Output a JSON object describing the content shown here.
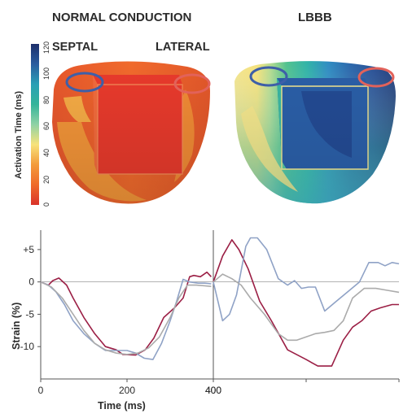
{
  "panels": {
    "normal_title": "NORMAL CONDUCTION",
    "lbbb_title": "LBBB",
    "septal_label": "SEPTAL",
    "lateral_label": "LATERAL"
  },
  "colorbar": {
    "title": "Activation Time (ms)",
    "ticks": [
      "0",
      "20",
      "40",
      "60",
      "80",
      "100",
      "120"
    ],
    "colors": [
      "#d9322a",
      "#ef6a2a",
      "#f39b3a",
      "#f7e27a",
      "#8fd2a5",
      "#33b49a",
      "#2a9fb5",
      "#2a5c9e",
      "#1d2f6b"
    ]
  },
  "markers": {
    "septal_color": "#3e5fa8",
    "lateral_color": "#e2625a"
  },
  "chart_data": [
    {
      "type": "line",
      "panel": "normal",
      "xlabel": "Time (ms)",
      "ylabel": "Strain (%)",
      "xlim": [
        0,
        400
      ],
      "ylim": [
        -15,
        8
      ],
      "x_ticks": [
        "0",
        "200",
        "400"
      ],
      "y_ticks": [
        "+5",
        "0",
        "-5",
        "-10"
      ],
      "series": [
        {
          "color": "#9b1f45",
          "x": [
            0,
            18,
            28,
            42,
            60,
            75,
            100,
            125,
            150,
            175,
            190,
            220,
            242,
            262,
            285,
            310,
            330,
            345,
            355,
            370,
            385,
            395
          ],
          "y": [
            0,
            -0.5,
            0.2,
            0.6,
            -0.5,
            -2.5,
            -5.5,
            -8,
            -10,
            -10.5,
            -11.2,
            -11.3,
            -10.5,
            -8.7,
            -5.5,
            -4,
            -2.5,
            0.8,
            1,
            0.8,
            1.5,
            0.8
          ]
        },
        {
          "color": "#8fa2c6",
          "x": [
            0,
            18,
            35,
            55,
            75,
            100,
            125,
            150,
            175,
            200,
            220,
            240,
            260,
            280,
            300,
            315,
            330,
            345,
            365,
            380,
            395
          ],
          "y": [
            0,
            -0.5,
            -1.5,
            -3.5,
            -6,
            -8,
            -9.5,
            -10.6,
            -10.6,
            -10.6,
            -11,
            -11.8,
            -12,
            -9.5,
            -6,
            -3,
            0.4,
            0,
            -0.2,
            -0.2,
            -0.3
          ]
        },
        {
          "color": "#ababab",
          "x": [
            0,
            25,
            50,
            75,
            100,
            125,
            150,
            175,
            200,
            225,
            250,
            275,
            300,
            320,
            340,
            360,
            380,
            395
          ],
          "y": [
            0,
            -0.8,
            -2.5,
            -5,
            -7.5,
            -9.5,
            -10.5,
            -11,
            -11.2,
            -11,
            -10.2,
            -8.5,
            -5.5,
            -2.5,
            -0.5,
            -0.5,
            -0.6,
            -0.7
          ]
        }
      ]
    },
    {
      "type": "line",
      "panel": "lbbb",
      "xlabel": "",
      "ylabel": "",
      "xlim": [
        400,
        800
      ],
      "ylim": [
        -15,
        8
      ],
      "x_ticks": [
        "400"
      ],
      "y_ticks": [],
      "series": [
        {
          "color": "#9b1f45",
          "x": [
            400,
            420,
            440,
            455,
            475,
            500,
            525,
            560,
            600,
            625,
            655,
            680,
            700,
            720,
            740,
            760,
            785,
            800
          ],
          "y": [
            0,
            4,
            6.5,
            5,
            2,
            -3,
            -6,
            -10.5,
            -12,
            -13,
            -13,
            -9,
            -7,
            -6,
            -4.5,
            -4,
            -3.5,
            -3.5
          ]
        },
        {
          "color": "#8fa2c6",
          "x": [
            400,
            420,
            435,
            450,
            470,
            480,
            495,
            515,
            540,
            560,
            575,
            590,
            605,
            620,
            640,
            665,
            690,
            715,
            735,
            755,
            770,
            785,
            800
          ],
          "y": [
            0,
            -6,
            -5,
            -2,
            5.5,
            6.8,
            6.8,
            5,
            0.5,
            -0.5,
            0.2,
            -1,
            -0.8,
            -0.8,
            -4.5,
            -3,
            -1.5,
            0,
            3,
            3,
            2.5,
            3,
            2.8
          ]
        },
        {
          "color": "#ababab",
          "x": [
            400,
            420,
            440,
            460,
            480,
            510,
            540,
            560,
            580,
            600,
            620,
            640,
            660,
            680,
            700,
            725,
            750,
            775,
            800
          ],
          "y": [
            0,
            1.2,
            0.5,
            -0.5,
            -2.5,
            -5,
            -8,
            -9,
            -9,
            -8.5,
            -8,
            -7.8,
            -7.5,
            -6,
            -2.5,
            -1,
            -1,
            -1.3,
            -1.6
          ]
        }
      ]
    }
  ]
}
